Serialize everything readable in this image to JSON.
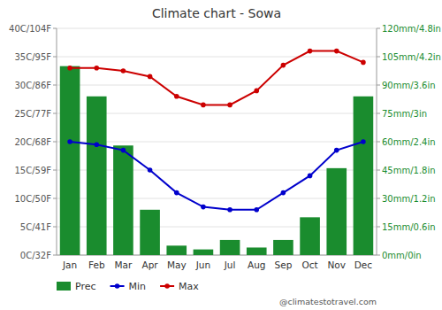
{
  "chart_data": {
    "type": "bar",
    "title": "Climate chart - Sowa",
    "categories": [
      "Jan",
      "Feb",
      "Mar",
      "Apr",
      "May",
      "Jun",
      "Jul",
      "Aug",
      "Sep",
      "Oct",
      "Nov",
      "Dec"
    ],
    "series": [
      {
        "name": "Prec",
        "type": "bar",
        "axis": "y2",
        "color": "#1a8c2e",
        "values": [
          100,
          84,
          58,
          24,
          5,
          3,
          8,
          4,
          8,
          20,
          46,
          84
        ]
      },
      {
        "name": "Min",
        "type": "line",
        "color": "#0000cc",
        "marker": "circle",
        "values": [
          20,
          19.5,
          18.5,
          15,
          11,
          8.5,
          8,
          8,
          11,
          14,
          18.5,
          20
        ]
      },
      {
        "name": "Max",
        "type": "line",
        "color": "#cc0000",
        "marker": "circle",
        "values": [
          33,
          33,
          32.5,
          31.5,
          28,
          26.5,
          26.5,
          29,
          33.5,
          36,
          36,
          34
        ]
      }
    ],
    "ylim": [
      0,
      40
    ],
    "yticks": [
      {
        "value": 0,
        "label": "0C/32F"
      },
      {
        "value": 5,
        "label": "5C/41F"
      },
      {
        "value": 10,
        "label": "10C/50F"
      },
      {
        "value": 15,
        "label": "15C/59F"
      },
      {
        "value": 20,
        "label": "20C/68F"
      },
      {
        "value": 25,
        "label": "25C/77F"
      },
      {
        "value": 30,
        "label": "30C/86F"
      },
      {
        "value": 35,
        "label": "35C/95F"
      },
      {
        "value": 40,
        "label": "40C/104F"
      }
    ],
    "y2lim": [
      0,
      120
    ],
    "y2ticks": [
      {
        "value": 0,
        "label": "0mm/0in"
      },
      {
        "value": 15,
        "label": "15mm/0.6in"
      },
      {
        "value": 30,
        "label": "30mm/1.2in"
      },
      {
        "value": 45,
        "label": "45mm/1.8in"
      },
      {
        "value": 60,
        "label": "60mm/2.4in"
      },
      {
        "value": 75,
        "label": "75mm/3in"
      },
      {
        "value": 90,
        "label": "90mm/3.6in"
      },
      {
        "value": 105,
        "label": "105mm/4.2in"
      },
      {
        "value": 120,
        "label": "120mm/4.8in"
      }
    ],
    "grid": true,
    "legend": "bottom",
    "annotations": [
      "@climatestotravel.com"
    ]
  }
}
